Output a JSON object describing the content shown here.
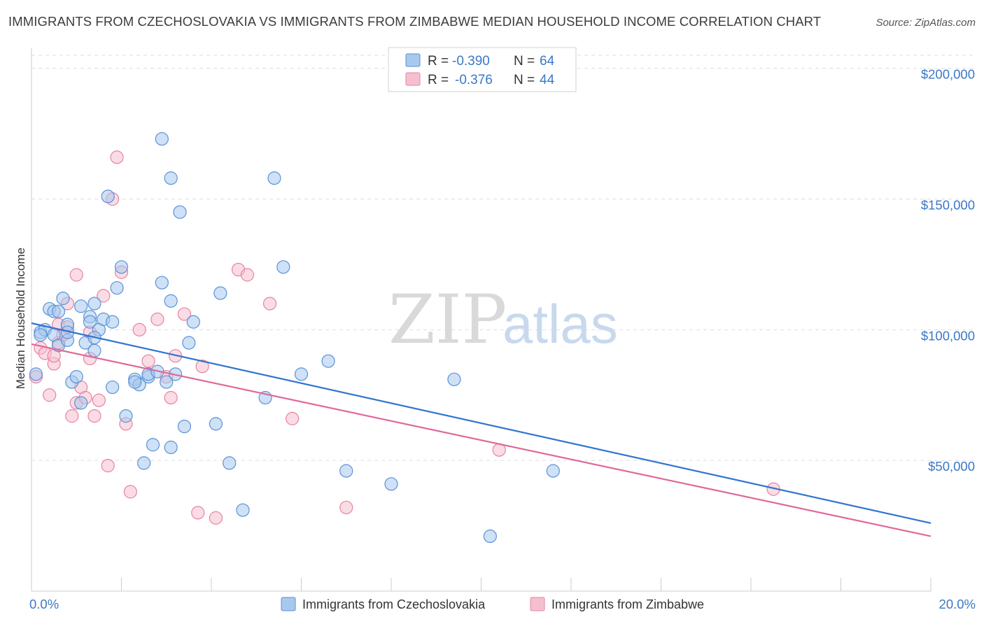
{
  "title": "IMMIGRANTS FROM CZECHOSLOVAKIA VS IMMIGRANTS FROM ZIMBABWE MEDIAN HOUSEHOLD INCOME CORRELATION CHART",
  "source": "Source: ZipAtlas.com",
  "watermark": {
    "zip": "ZIP",
    "atlas": "atlas"
  },
  "legend": {
    "r_label": "R =",
    "n_label": "N =",
    "series": [
      {
        "r": "-0.390",
        "n": "64"
      },
      {
        "r": "-0.376",
        "n": "44"
      }
    ]
  },
  "colors": {
    "blue_fill": "#a8c8ee",
    "blue_stroke": "#5a92d6",
    "blue_line": "#2f74d0",
    "pink_fill": "#f6bfd0",
    "pink_stroke": "#e7839f",
    "pink_line": "#e0689a",
    "tick": "#3a78c8",
    "grid": "#dddddd"
  },
  "chart_data": {
    "type": "scatter",
    "title": "IMMIGRANTS FROM CZECHOSLOVAKIA VS IMMIGRANTS FROM ZIMBABWE MEDIAN HOUSEHOLD INCOME CORRELATION CHART",
    "xlabel": "",
    "ylabel": "Median Household Income",
    "xlim": [
      0,
      20
    ],
    "ylim": [
      0,
      205000
    ],
    "x_tick_labels": [
      "0.0%",
      "20.0%"
    ],
    "y_ticks": [
      50000,
      100000,
      150000,
      200000
    ],
    "y_tick_labels": [
      "$50,000",
      "$100,000",
      "$150,000",
      "$200,000"
    ],
    "grid": true,
    "legend_position": "top-center",
    "series": [
      {
        "name": "Immigrants from Czechoslovakia",
        "r": -0.39,
        "n": 64,
        "trend": {
          "x": [
            0,
            20
          ],
          "y": [
            102500,
            26000
          ]
        },
        "points": [
          [
            0.1,
            83000
          ],
          [
            0.2,
            99000
          ],
          [
            0.3,
            100000
          ],
          [
            0.4,
            108000
          ],
          [
            0.5,
            107000
          ],
          [
            0.5,
            98000
          ],
          [
            0.6,
            94000
          ],
          [
            0.7,
            112000
          ],
          [
            0.8,
            102000
          ],
          [
            0.8,
            96000
          ],
          [
            0.9,
            80000
          ],
          [
            0.8,
            99000
          ],
          [
            1.0,
            82000
          ],
          [
            1.1,
            109000
          ],
          [
            1.1,
            72000
          ],
          [
            1.2,
            95000
          ],
          [
            1.3,
            105000
          ],
          [
            1.3,
            103000
          ],
          [
            1.4,
            110000
          ],
          [
            1.4,
            92000
          ],
          [
            1.5,
            100000
          ],
          [
            1.6,
            104000
          ],
          [
            1.4,
            97000
          ],
          [
            1.7,
            151000
          ],
          [
            1.8,
            103000
          ],
          [
            1.8,
            78000
          ],
          [
            1.9,
            116000
          ],
          [
            2.0,
            124000
          ],
          [
            2.1,
            67000
          ],
          [
            2.3,
            81000
          ],
          [
            2.4,
            79000
          ],
          [
            2.5,
            49000
          ],
          [
            2.6,
            82000
          ],
          [
            2.6,
            83000
          ],
          [
            2.7,
            56000
          ],
          [
            2.3,
            80000
          ],
          [
            2.8,
            84000
          ],
          [
            2.9,
            118000
          ],
          [
            2.9,
            173000
          ],
          [
            3.0,
            80000
          ],
          [
            3.1,
            55000
          ],
          [
            3.1,
            158000
          ],
          [
            3.2,
            83000
          ],
          [
            3.3,
            145000
          ],
          [
            3.4,
            63000
          ],
          [
            3.5,
            95000
          ],
          [
            3.6,
            103000
          ],
          [
            3.1,
            111000
          ],
          [
            4.2,
            114000
          ],
          [
            4.1,
            64000
          ],
          [
            4.4,
            49000
          ],
          [
            4.7,
            31000
          ],
          [
            5.2,
            74000
          ],
          [
            5.4,
            158000
          ],
          [
            5.6,
            124000
          ],
          [
            6.0,
            83000
          ],
          [
            6.6,
            88000
          ],
          [
            7.0,
            46000
          ],
          [
            8.0,
            41000
          ],
          [
            9.4,
            81000
          ],
          [
            10.2,
            21000
          ],
          [
            11.6,
            46000
          ],
          [
            0.6,
            107000
          ],
          [
            0.2,
            98000
          ]
        ]
      },
      {
        "name": "Immigrants from Zimbabwe",
        "r": -0.376,
        "n": 44,
        "trend": {
          "x": [
            0,
            20
          ],
          "y": [
            94500,
            21000
          ]
        },
        "points": [
          [
            0.1,
            82000
          ],
          [
            0.2,
            93000
          ],
          [
            0.3,
            91000
          ],
          [
            0.4,
            75000
          ],
          [
            0.5,
            87000
          ],
          [
            0.5,
            90000
          ],
          [
            0.6,
            95000
          ],
          [
            0.6,
            102000
          ],
          [
            0.7,
            98000
          ],
          [
            0.8,
            110000
          ],
          [
            0.8,
            101000
          ],
          [
            0.9,
            67000
          ],
          [
            1.0,
            72000
          ],
          [
            1.0,
            121000
          ],
          [
            1.1,
            78000
          ],
          [
            1.2,
            74000
          ],
          [
            1.3,
            99000
          ],
          [
            1.3,
            89000
          ],
          [
            1.4,
            67000
          ],
          [
            1.5,
            73000
          ],
          [
            1.6,
            113000
          ],
          [
            1.7,
            48000
          ],
          [
            1.8,
            150000
          ],
          [
            1.9,
            166000
          ],
          [
            2.0,
            122000
          ],
          [
            2.1,
            64000
          ],
          [
            2.2,
            38000
          ],
          [
            2.4,
            100000
          ],
          [
            2.6,
            88000
          ],
          [
            2.8,
            104000
          ],
          [
            3.0,
            82000
          ],
          [
            3.1,
            74000
          ],
          [
            3.2,
            90000
          ],
          [
            3.4,
            106000
          ],
          [
            3.7,
            30000
          ],
          [
            3.8,
            86000
          ],
          [
            4.1,
            28000
          ],
          [
            4.6,
            123000
          ],
          [
            4.8,
            121000
          ],
          [
            5.3,
            110000
          ],
          [
            5.8,
            66000
          ],
          [
            7.0,
            32000
          ],
          [
            10.4,
            54000
          ],
          [
            16.5,
            39000
          ]
        ]
      }
    ]
  }
}
